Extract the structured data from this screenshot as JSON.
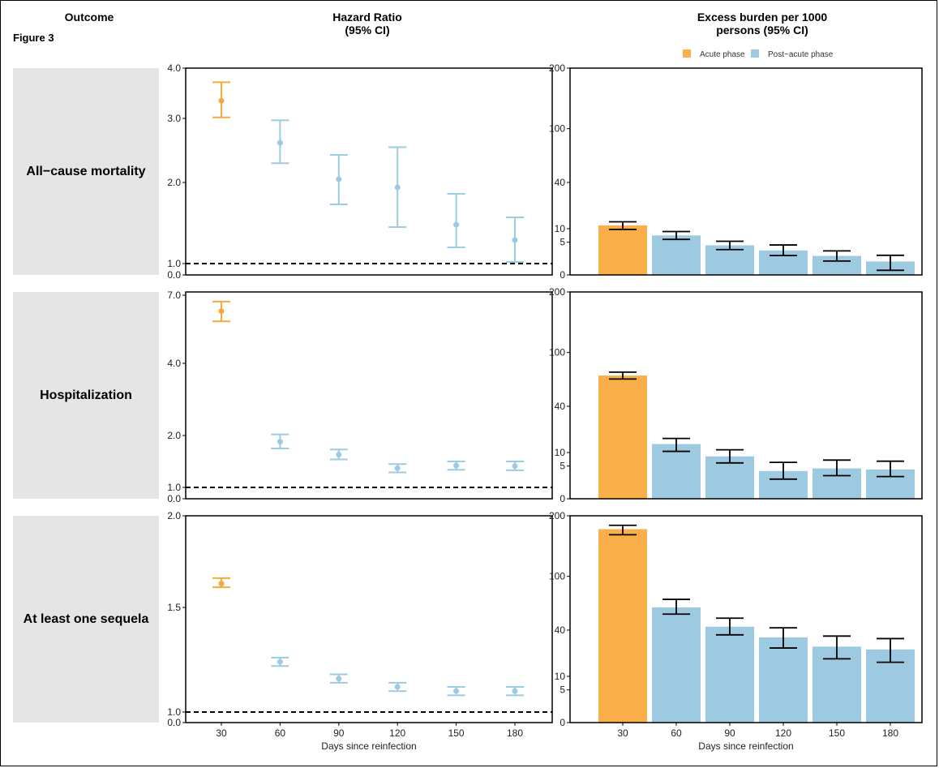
{
  "figure_label": "Figure 3",
  "headers": {
    "outcome": "Outcome",
    "hazard_ratio": "Hazard Ratio\n(95% CI)",
    "excess_burden": "Excess burden per 1000\npersons (95% CI)"
  },
  "legend": [
    {
      "label": "Acute phase",
      "color": "#fbaf4a"
    },
    {
      "label": "Post−acute phase",
      "color": "#9ecae1"
    }
  ],
  "colors": {
    "acute": "#fbaf4a",
    "post_acute": "#9ecae1",
    "hr_acute": "#f6a93e",
    "hr_post": "#9dcbe2",
    "error_bar": "#000000",
    "reference_line": "#000000",
    "strip": "#e5e5e5"
  },
  "chart_data": [
    {
      "type": "scatter",
      "panel": "hazard_ratio",
      "outcome": "All−cause mortality",
      "xlabel": "Days since reinfection",
      "ylabel": "",
      "x": [
        30,
        60,
        90,
        120,
        150,
        180
      ],
      "x_ticks": [
        "30",
        "60",
        "90",
        "120",
        "150",
        "180"
      ],
      "hr": [
        3.35,
        2.62,
        2.05,
        1.94,
        1.48,
        1.29
      ],
      "lo": [
        3.02,
        2.3,
        1.73,
        1.45,
        1.2,
        1.02
      ],
      "hi": [
        3.72,
        2.97,
        2.43,
        2.55,
        1.86,
        1.57
      ],
      "y_ticks": [
        "0.0",
        "1.0",
        "2.0",
        "3.0",
        "4.0"
      ],
      "y_tick_values": [
        0.0,
        1.0,
        2.0,
        3.0,
        4.0
      ],
      "reference": 1.0,
      "phase": [
        "acute",
        "post",
        "post",
        "post",
        "post",
        "post"
      ]
    },
    {
      "type": "bar",
      "panel": "excess_burden",
      "outcome": "All−cause mortality",
      "xlabel": "Days since reinfection",
      "ylabel": "",
      "categories": [
        "30",
        "60",
        "90",
        "120",
        "150",
        "180"
      ],
      "values": [
        11.5,
        7.3,
        4.1,
        2.8,
        1.7,
        0.85
      ],
      "lo": [
        9.7,
        5.9,
        3.0,
        1.75,
        0.9,
        0.1
      ],
      "hi": [
        13.2,
        8.8,
        5.3,
        4.2,
        2.7,
        1.8
      ],
      "y_ticks": [
        "0",
        "5",
        "10",
        "40",
        "100",
        "200"
      ],
      "y_tick_values": [
        0,
        5,
        10,
        40,
        100,
        200
      ],
      "ylim": [
        0,
        200
      ],
      "scale": "sqrt",
      "phase": [
        "acute",
        "post",
        "post",
        "post",
        "post",
        "post"
      ]
    },
    {
      "type": "scatter",
      "panel": "hazard_ratio",
      "outcome": "Hospitalization",
      "xlabel": "Days since reinfection",
      "ylabel": "",
      "x": [
        30,
        60,
        90,
        120,
        150,
        180
      ],
      "x_ticks": [
        "30",
        "60",
        "90",
        "120",
        "150",
        "180"
      ],
      "hr": [
        6.3,
        1.88,
        1.63,
        1.37,
        1.42,
        1.41
      ],
      "lo": [
        5.85,
        1.75,
        1.54,
        1.29,
        1.34,
        1.33
      ],
      "hi": [
        6.72,
        2.03,
        1.73,
        1.45,
        1.5,
        1.5
      ],
      "y_ticks": [
        "0.0",
        "1.0",
        "2.0",
        "4.0",
        "7.0"
      ],
      "y_tick_values": [
        0.0,
        1.0,
        2.0,
        4.0,
        7.0
      ],
      "reference": 1.0,
      "phase": [
        "acute",
        "post",
        "post",
        "post",
        "post",
        "post"
      ]
    },
    {
      "type": "bar",
      "panel": "excess_burden",
      "outcome": "Hospitalization",
      "xlabel": "Days since reinfection",
      "ylabel": "",
      "categories": [
        "30",
        "60",
        "90",
        "120",
        "150",
        "180"
      ],
      "values": [
        71,
        14,
        8.4,
        3.6,
        4.3,
        4.0
      ],
      "lo": [
        67,
        10.5,
        6.0,
        1.8,
        2.5,
        2.3
      ],
      "hi": [
        75,
        17,
        11.2,
        6.2,
        7.0,
        6.6
      ],
      "y_ticks": [
        "0",
        "5",
        "10",
        "40",
        "100",
        "200"
      ],
      "y_tick_values": [
        0,
        5,
        10,
        40,
        100,
        200
      ],
      "ylim": [
        0,
        200
      ],
      "scale": "sqrt",
      "phase": [
        "acute",
        "post",
        "post",
        "post",
        "post",
        "post"
      ]
    },
    {
      "type": "scatter",
      "panel": "hazard_ratio",
      "outcome": "At least one sequela",
      "xlabel": "Days since reinfection",
      "ylabel": "",
      "x": [
        30,
        60,
        90,
        120,
        150,
        180
      ],
      "x_ticks": [
        "30",
        "60",
        "90",
        "120",
        "150",
        "180"
      ],
      "hr": [
        1.63,
        1.24,
        1.16,
        1.12,
        1.1,
        1.1
      ],
      "lo": [
        1.61,
        1.22,
        1.14,
        1.1,
        1.08,
        1.08
      ],
      "hi": [
        1.66,
        1.26,
        1.18,
        1.14,
        1.12,
        1.12
      ],
      "y_ticks": [
        "0.0",
        "1.0",
        "1.5",
        "2.0"
      ],
      "y_tick_values": [
        0.0,
        1.0,
        1.5,
        2.0
      ],
      "reference": 1.0,
      "phase": [
        "acute",
        "post",
        "post",
        "post",
        "post",
        "post"
      ]
    },
    {
      "type": "bar",
      "panel": "excess_burden",
      "outcome": "At least one sequela",
      "xlabel": "Days since reinfection",
      "ylabel": "",
      "categories": [
        "30",
        "60",
        "90",
        "120",
        "150",
        "180"
      ],
      "values": [
        175,
        62,
        43,
        34,
        27,
        25
      ],
      "lo": [
        165,
        55,
        36,
        26,
        19,
        17
      ],
      "hi": [
        182,
        71,
        51,
        42,
        35,
        33
      ],
      "y_ticks": [
        "0",
        "5",
        "10",
        "40",
        "100",
        "200"
      ],
      "y_tick_values": [
        0,
        5,
        10,
        40,
        100,
        200
      ],
      "ylim": [
        0,
        200
      ],
      "scale": "sqrt",
      "phase": [
        "acute",
        "post",
        "post",
        "post",
        "post",
        "post"
      ]
    }
  ]
}
